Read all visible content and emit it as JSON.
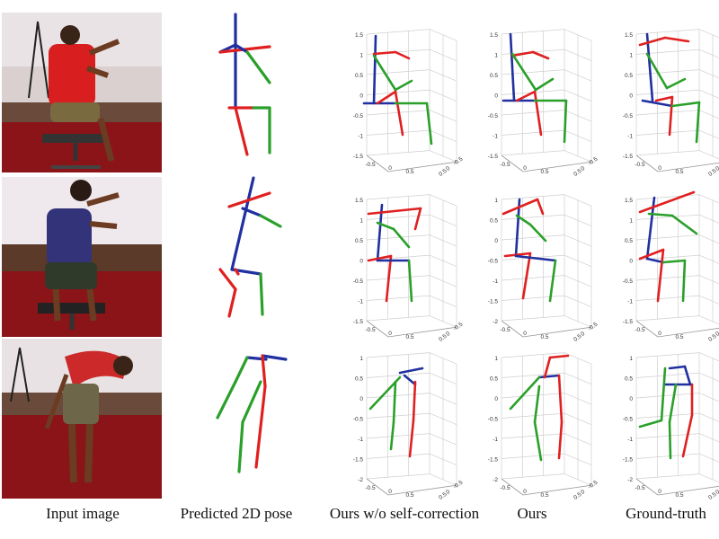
{
  "columns": [
    {
      "key": "input",
      "label": "Input image"
    },
    {
      "key": "pose2d",
      "label": "Predicted 2D pose"
    },
    {
      "key": "ours_wo",
      "label": "Ours w/o self-correction"
    },
    {
      "key": "ours",
      "label": "Ours"
    },
    {
      "key": "gt",
      "label": "Ground-truth"
    }
  ],
  "colors": {
    "left_limb": "#e02020",
    "right_limb": "#2aa02a",
    "torso": "#2030a0",
    "grid": "#cfcfcf",
    "axis_text": "#333333",
    "floor": "#8a1418"
  },
  "axis_ticks": {
    "z": [
      "1.5",
      "1",
      "0.5",
      "0",
      "-0.5",
      "-1",
      "-1.5"
    ],
    "z_row2": [
      "1",
      "0.5",
      "0",
      "-0.5",
      "-1",
      "-1.5",
      "-2"
    ],
    "x": [
      "-0.5",
      "0",
      "0.5"
    ],
    "y": [
      "-0.5",
      "0",
      "0.5"
    ]
  },
  "rows": [
    {
      "subject_shirt": "#d81e1e",
      "pose": "sitting-pointing"
    },
    {
      "subject_shirt": "#33337a",
      "pose": "sitting-arms-raised"
    },
    {
      "subject_shirt": "#cc2a2a",
      "pose": "bending"
    }
  ]
}
